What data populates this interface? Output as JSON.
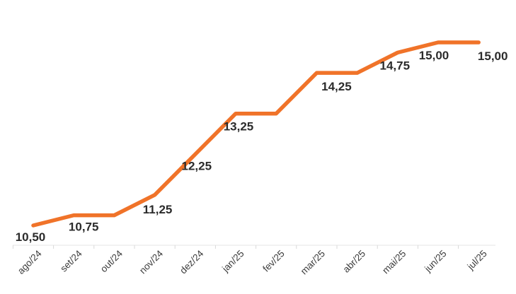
{
  "chart_data": {
    "type": "line",
    "title": "",
    "xlabel": "",
    "ylabel": "",
    "categories": [
      "ago/24",
      "set/24",
      "out/24",
      "nov/24",
      "dez/24",
      "jan/25",
      "fev/25",
      "mar/25",
      "abr/25",
      "mai/25",
      "jun/25",
      "jul/25"
    ],
    "series": [
      {
        "values": [
          10.5,
          10.75,
          10.75,
          11.25,
          12.25,
          13.25,
          13.25,
          14.25,
          14.25,
          14.75,
          15.0,
          15.0
        ],
        "color": "#f07329"
      }
    ],
    "data_labels": [
      "10,50",
      "10,75",
      null,
      "11,25",
      "12,25",
      "13,25",
      null,
      "14,25",
      null,
      "14,75",
      "15,00",
      "15,00"
    ],
    "ylim": [
      10.25,
      15.25
    ],
    "grid": false,
    "legend": "none"
  }
}
